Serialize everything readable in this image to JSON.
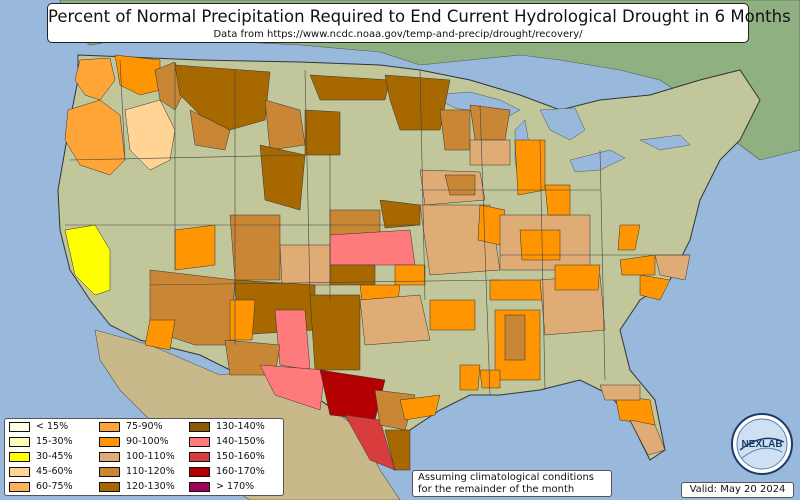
{
  "title": "Percent of Normal Precipitation Required to End Current Hydrological Drought in 6 Months",
  "subtitle": "Data from https://www.ncdc.noaa.gov/temp-and-precip/drought/recovery/",
  "legend": [
    {
      "label": "< 15%",
      "color": "#ffffe6"
    },
    {
      "label": "15-30%",
      "color": "#ffffb3"
    },
    {
      "label": "30-45%",
      "color": "#ffff00"
    },
    {
      "label": "45-60%",
      "color": "#ffd494"
    },
    {
      "label": "60-75%",
      "color": "#ffb05a"
    },
    {
      "label": "75-90%",
      "color": "#ffa537"
    },
    {
      "label": "90-100%",
      "color": "#ff9500"
    },
    {
      "label": "100-110%",
      "color": "#dfac76"
    },
    {
      "label": "110-120%",
      "color": "#c98735"
    },
    {
      "label": "120-130%",
      "color": "#a86800"
    },
    {
      "label": "130-140%",
      "color": "#8c5a00"
    },
    {
      "label": "140-150%",
      "color": "#ff7a7a"
    },
    {
      "label": "150-160%",
      "color": "#d93c3c"
    },
    {
      "label": "160-170%",
      "color": "#b30000"
    },
    {
      "label": "> 170%",
      "color": "#a0005a"
    }
  ],
  "note": {
    "line1": "Assuming climatological conditions",
    "line2": "for the remainder of the month"
  },
  "valid": "Valid: May 20 2024",
  "logo_text": "NEXLAB",
  "colors": {
    "ocean": "#98b8dc",
    "land": "#c2c79b",
    "canada": "#8fb080",
    "border": "#333333"
  }
}
